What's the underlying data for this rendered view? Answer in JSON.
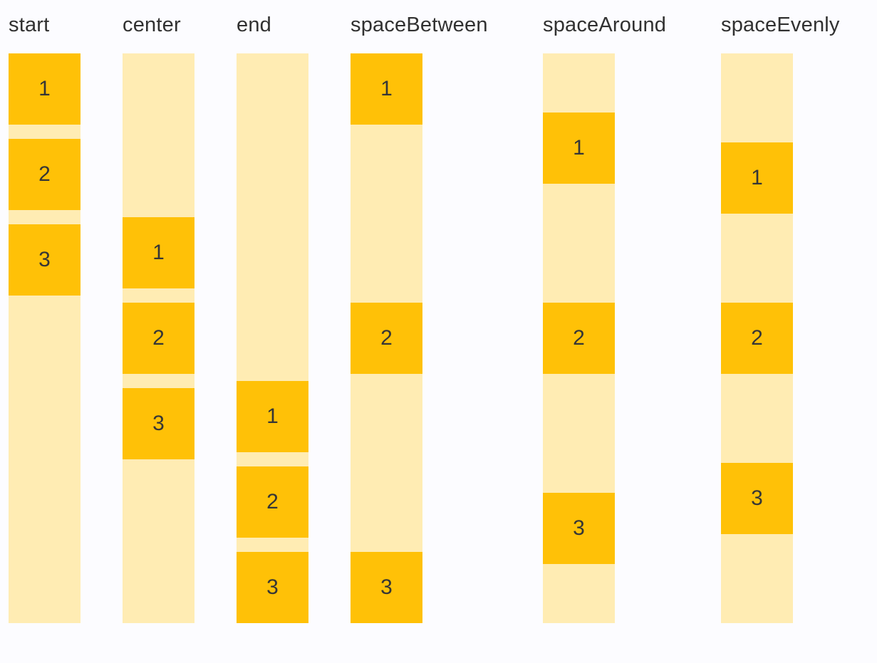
{
  "page": {
    "background_color": "#FCFCFF"
  },
  "colors": {
    "item_box": "#FFC107",
    "track_background": "#FFECB3",
    "label_text": "#313131",
    "item_text": "#363636"
  },
  "columns": [
    {
      "label": "start",
      "alignment": "flex-start",
      "items": [
        "1",
        "2",
        "3"
      ]
    },
    {
      "label": "center",
      "alignment": "center",
      "items": [
        "1",
        "2",
        "3"
      ]
    },
    {
      "label": "end",
      "alignment": "flex-end",
      "items": [
        "1",
        "2",
        "3"
      ]
    },
    {
      "label": "spaceBetween",
      "alignment": "space-between",
      "items": [
        "1",
        "2",
        "3"
      ]
    },
    {
      "label": "spaceAround",
      "alignment": "space-around",
      "items": [
        "1",
        "2",
        "3"
      ]
    },
    {
      "label": "spaceEvenly",
      "alignment": "space-evenly",
      "items": [
        "1",
        "2",
        "3"
      ]
    }
  ]
}
